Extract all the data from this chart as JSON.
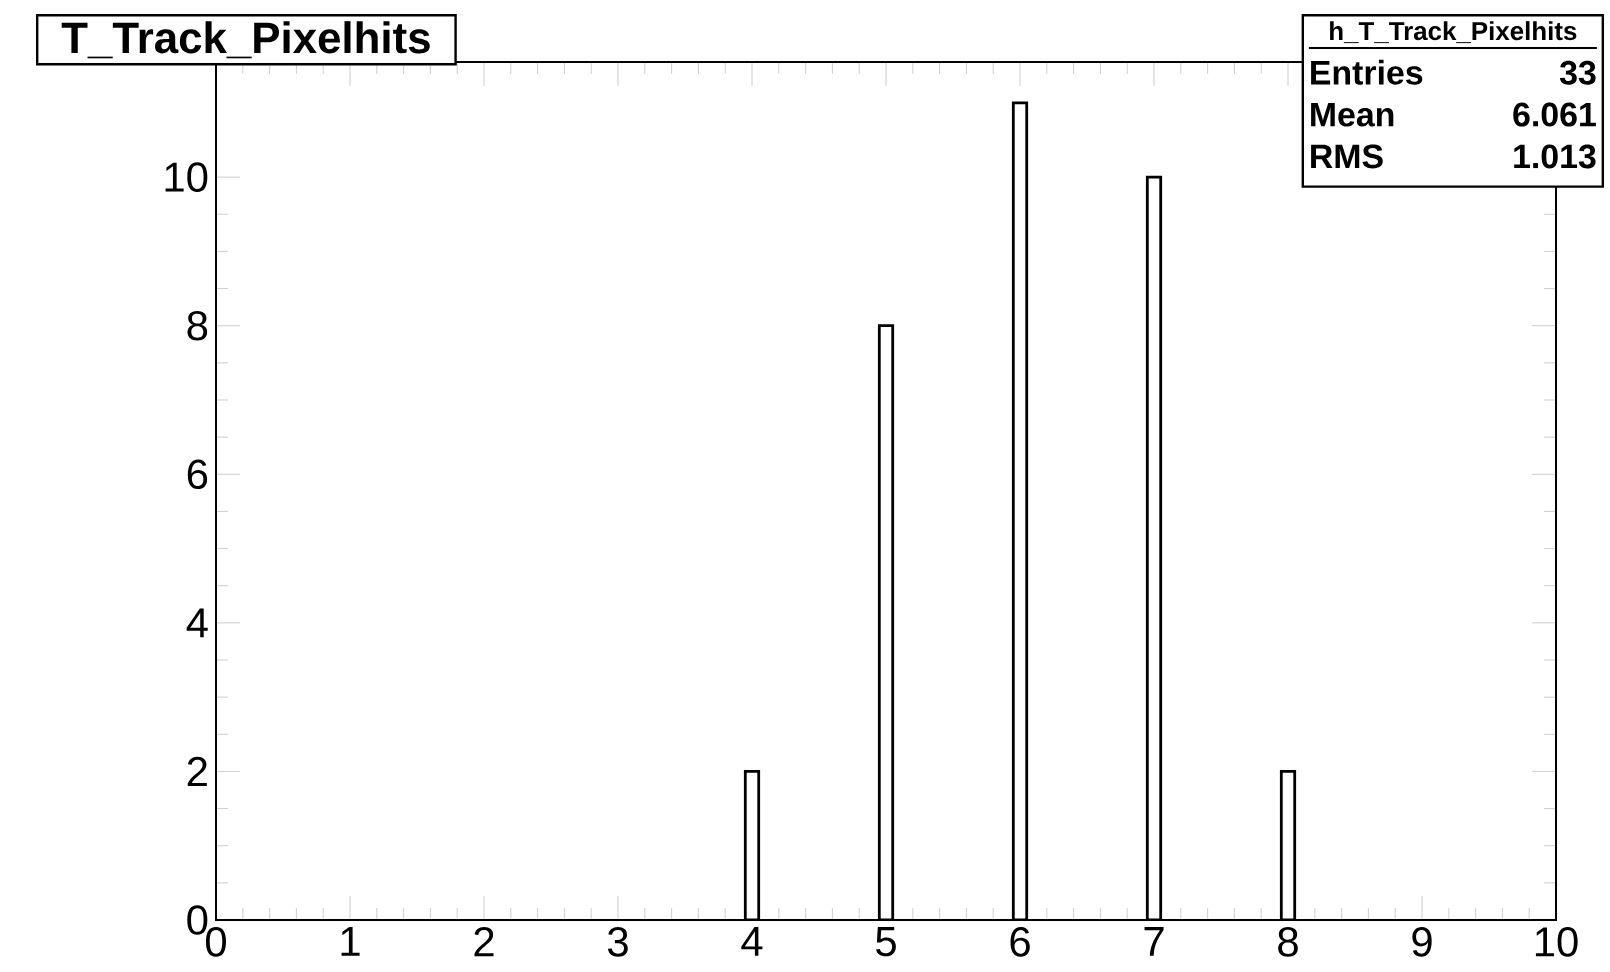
{
  "chart_data": {
    "type": "histogram",
    "title": "T_Track_Pixelhits",
    "bins": [
      3.95,
      4.05,
      4.95,
      5.05,
      5.95,
      6.05,
      6.95,
      7.05,
      7.95,
      8.05
    ],
    "values": [
      2,
      0,
      8,
      0,
      11,
      0,
      10,
      0,
      2
    ],
    "xlim": [
      0,
      10
    ],
    "ylim": [
      0,
      11.55
    ],
    "xticks": [
      0,
      1,
      2,
      3,
      4,
      5,
      6,
      7,
      8,
      9,
      10
    ],
    "yticks": [
      0,
      2,
      4,
      6,
      8,
      10
    ],
    "annotations": [
      "h_T_Track_Pixelhits",
      "Entries",
      "33",
      "Mean",
      "6.061",
      "RMS",
      "1.013"
    ]
  }
}
